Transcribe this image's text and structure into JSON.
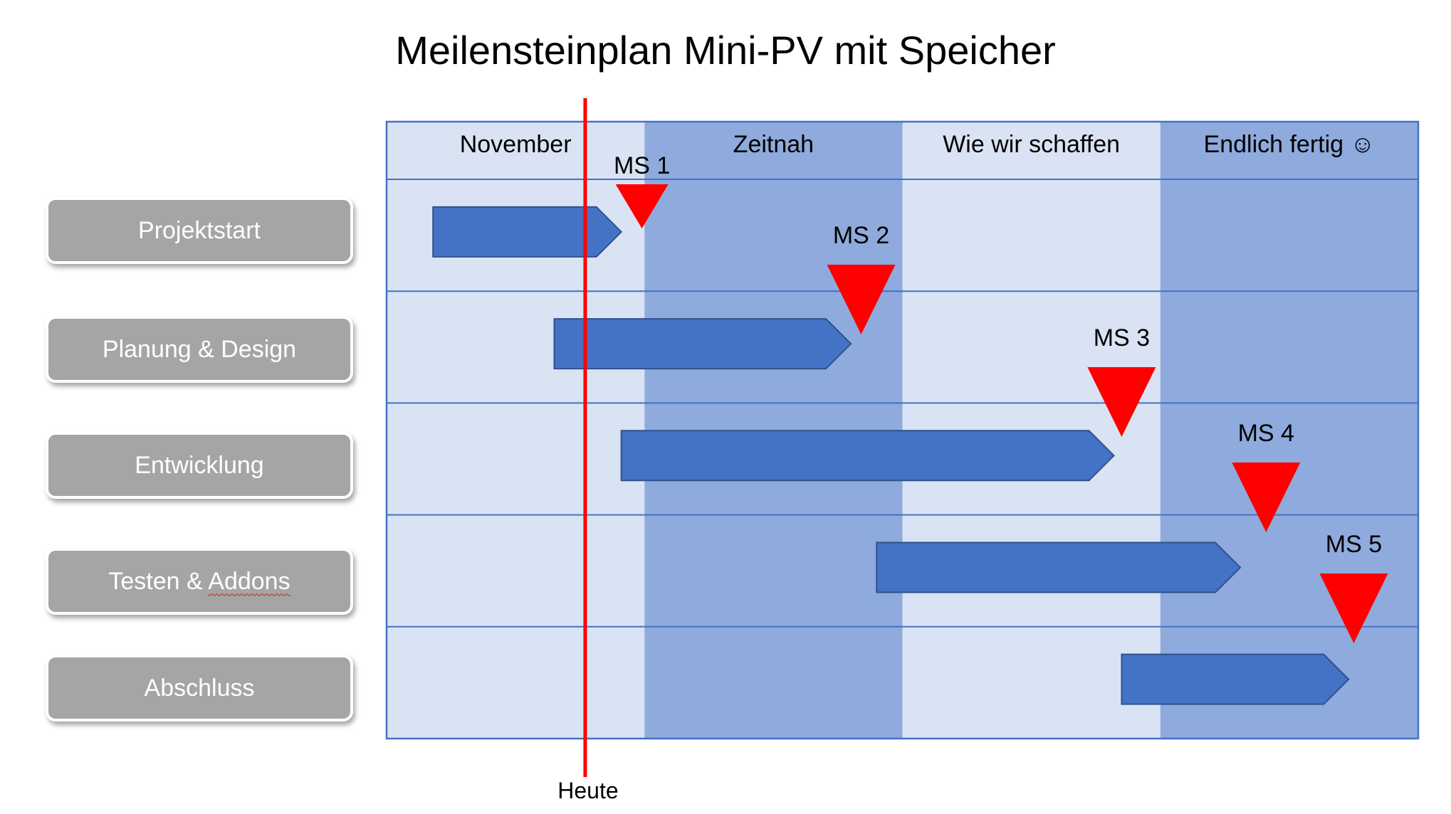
{
  "title": "Meilensteinplan Mini-PV mit Speicher",
  "columns": [
    {
      "label": "November",
      "shade": "light"
    },
    {
      "label": "Zeitnah",
      "shade": "dark"
    },
    {
      "label": "Wie wir schaffen",
      "shade": "light"
    },
    {
      "label": "Endlich fertig ☺",
      "shade": "dark"
    }
  ],
  "rows": [
    {
      "label_before": "Projektstart",
      "label_flagged": ""
    },
    {
      "label_before": "Planung & Design",
      "label_flagged": ""
    },
    {
      "label_before": "Entwicklung",
      "label_flagged": ""
    },
    {
      "label_before": "Testen & ",
      "label_flagged": "Addons"
    },
    {
      "label_before": "Abschluss",
      "label_flagged": ""
    }
  ],
  "tasks": [
    {
      "row": 0,
      "start": 0.18,
      "end": 0.91
    },
    {
      "row": 1,
      "start": 0.65,
      "end": 1.8
    },
    {
      "row": 2,
      "start": 0.91,
      "end": 2.82
    },
    {
      "row": 3,
      "start": 1.9,
      "end": 3.31
    },
    {
      "row": 4,
      "start": 2.85,
      "end": 3.73
    }
  ],
  "milestones": [
    {
      "label": "MS 1",
      "position": 0.99,
      "size": "small"
    },
    {
      "label": "MS 2",
      "position": 1.84,
      "size": "large"
    },
    {
      "label": "MS 3",
      "position": 2.85,
      "size": "large"
    },
    {
      "label": "MS 4",
      "position": 3.41,
      "size": "large"
    },
    {
      "label": "MS 5",
      "position": 3.75,
      "size": "large"
    }
  ],
  "today": {
    "label": "Heute",
    "position": 0.77
  },
  "colors": {
    "column_light": "#dae3f3",
    "column_dark": "#8faadc",
    "grid_line": "#4472c4",
    "task_bar": "#4472c4",
    "task_bar_border": "#2f528f",
    "milestone": "#ff0000",
    "today_line": "#ff0000",
    "row_button": "#a5a5a5"
  }
}
